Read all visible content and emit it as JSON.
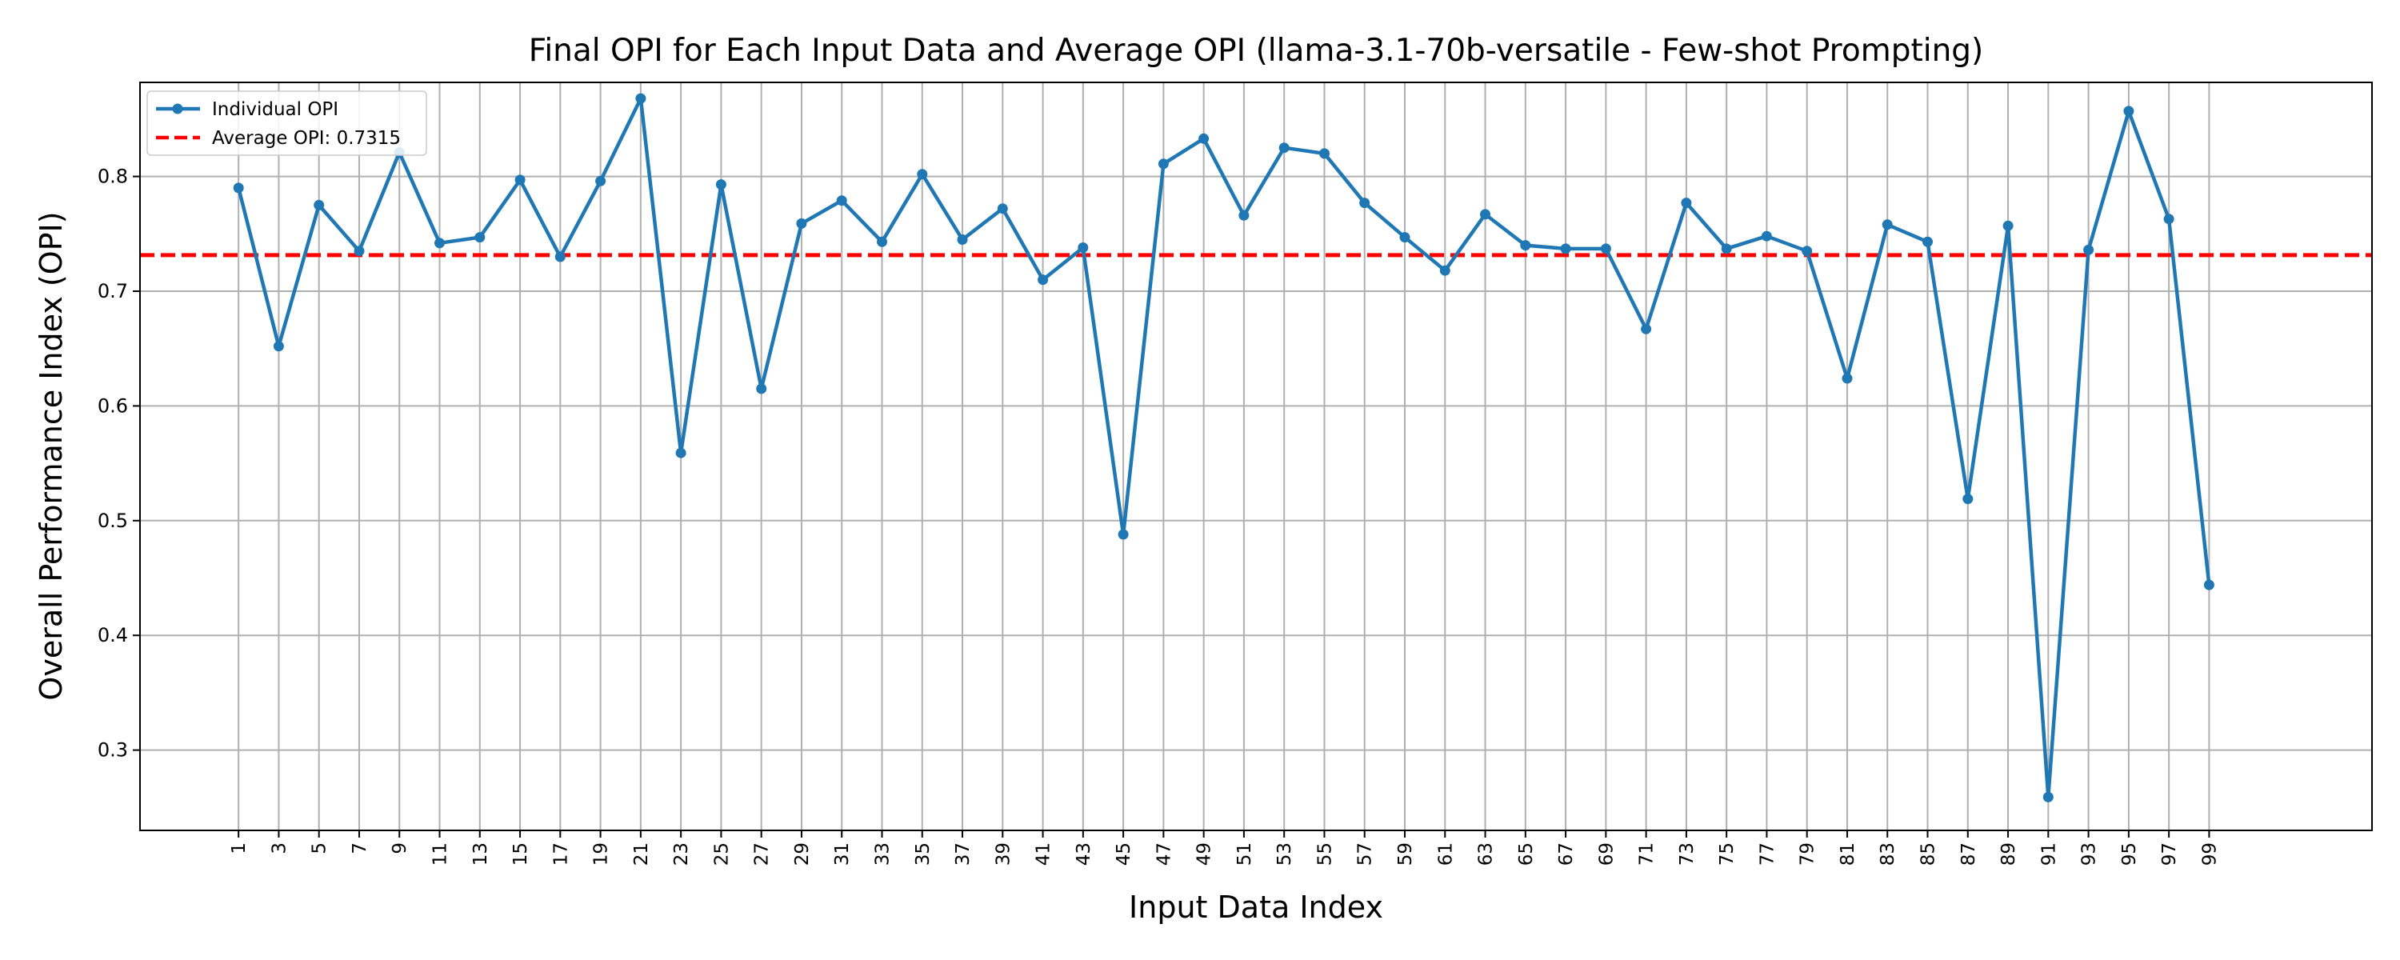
{
  "chart_data": {
    "type": "line",
    "title": "Final OPI for Each Input Data and Average OPI (llama-3.1-70b-versatile - Few-shot Prompting)",
    "xlabel": "Input Data Index",
    "ylabel": "Overall Performance Index (OPI)",
    "x": [
      1,
      3,
      5,
      7,
      9,
      11,
      13,
      15,
      17,
      19,
      21,
      23,
      25,
      27,
      29,
      31,
      33,
      35,
      37,
      39,
      41,
      43,
      45,
      47,
      49,
      51,
      53,
      55,
      57,
      59,
      61,
      63,
      65,
      67,
      69,
      71,
      73,
      75,
      77,
      79,
      81,
      83,
      85,
      87,
      89,
      91,
      93,
      95,
      97,
      99
    ],
    "x_tick_labels": [
      "1",
      "3",
      "5",
      "7",
      "9",
      "11",
      "13",
      "15",
      "17",
      "19",
      "21",
      "23",
      "25",
      "27",
      "29",
      "31",
      "33",
      "35",
      "37",
      "39",
      "41",
      "43",
      "45",
      "47",
      "49",
      "51",
      "53",
      "55",
      "57",
      "59",
      "61",
      "63",
      "65",
      "67",
      "69",
      "71",
      "73",
      "75",
      "77",
      "79",
      "81",
      "83",
      "85",
      "87",
      "89",
      "91",
      "93",
      "95",
      "97",
      "99"
    ],
    "y_ticks": [
      0.3,
      0.4,
      0.5,
      0.6,
      0.7,
      0.8
    ],
    "y_tick_labels": [
      "0.3",
      "0.4",
      "0.5",
      "0.6",
      "0.7",
      "0.8"
    ],
    "xlim": [
      -3.9,
      107.1
    ],
    "ylim": [
      0.23,
      0.882
    ],
    "grid": true,
    "legend_position": "top-left",
    "series": [
      {
        "name": "Individual OPI",
        "color": "#1f77b4",
        "marker": "circle",
        "values": [
          0.79,
          0.652,
          0.775,
          0.735,
          0.821,
          0.742,
          0.747,
          0.797,
          0.73,
          0.796,
          0.868,
          0.559,
          0.793,
          0.615,
          0.759,
          0.779,
          0.743,
          0.802,
          0.745,
          0.772,
          0.71,
          0.738,
          0.488,
          0.811,
          0.833,
          0.766,
          0.825,
          0.82,
          0.777,
          0.747,
          0.718,
          0.767,
          0.74,
          0.737,
          0.737,
          0.667,
          0.777,
          0.737,
          0.748,
          0.735,
          0.624,
          0.758,
          0.743,
          0.519,
          0.757,
          0.259,
          0.736,
          0.857,
          0.763,
          0.444
        ]
      }
    ],
    "reference_lines": [
      {
        "name": "Average OPI: 0.7315",
        "value": 0.7315,
        "color": "#ff0000",
        "style": "dashed"
      }
    ]
  }
}
